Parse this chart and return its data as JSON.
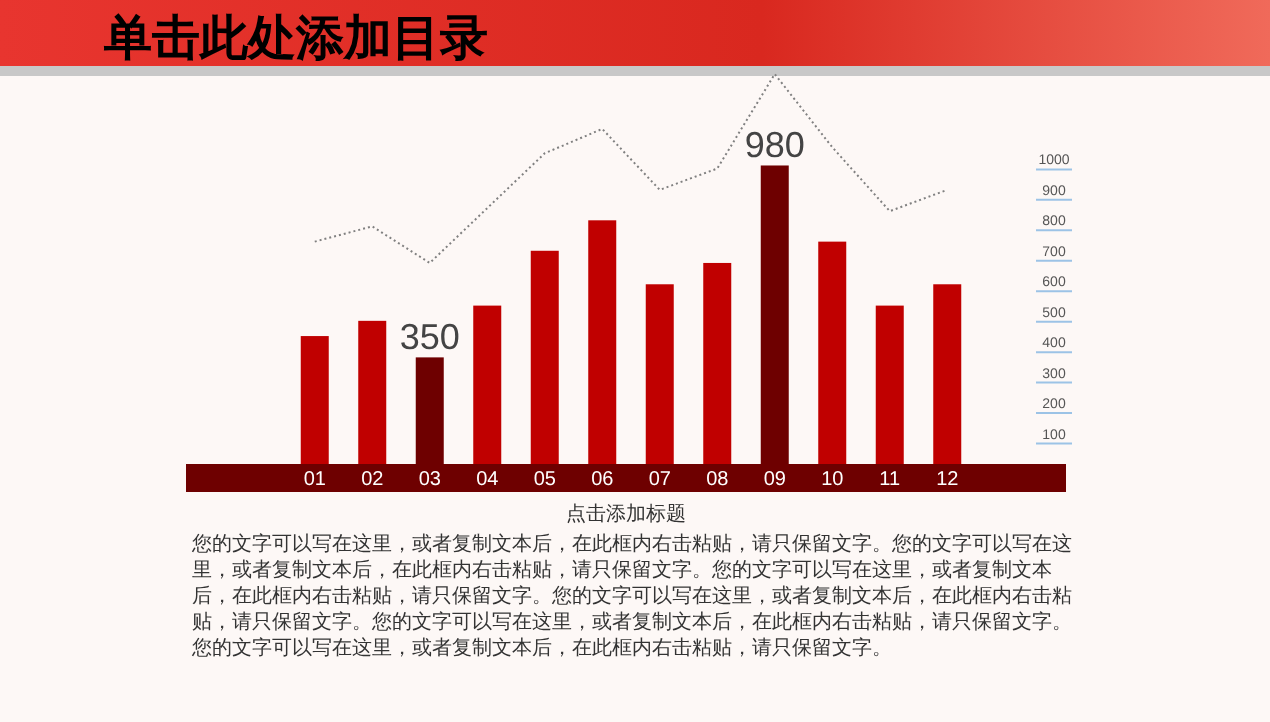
{
  "chart_data": {
    "type": "bar",
    "title": "单击此处添加目录",
    "subtitle": "点击添加标题",
    "annotations": [
      "您的文字可以写在这里，或者复制文本后，在此框内右击粘贴，请只保留文字。您的文字可以写在这里，或者复制文本后，在此框内右击粘贴，请只保留文字。您的文字可以写在这里，或者复制文本后，在此框内右击粘贴，请只保留文字。您的文字可以写在这里，或者复制文本后，在此框内右击粘贴，请只保留文字。您的文字可以写在这里，或者复制文本后，在此框内右击粘贴，请只保留文字。您的文字可以写在这里，或者复制文本后，在此框内右击粘贴，请只保留文字。"
    ],
    "categories": [
      "01",
      "02",
      "03",
      "04",
      "05",
      "06",
      "07",
      "08",
      "09",
      "10",
      "11",
      "12"
    ],
    "series": [
      {
        "values": [
          420,
          470,
          350,
          520,
          700,
          800,
          590,
          660,
          980,
          730,
          520,
          590
        ],
        "colors": [
          "#c00000",
          "#c00000",
          "#6e0000",
          "#c00000",
          "#c00000",
          "#c00000",
          "#c00000",
          "#c00000",
          "#6e0000",
          "#c00000",
          "#c00000",
          "#c00000"
        ],
        "value_labels": [
          null,
          null,
          "350",
          null,
          null,
          null,
          null,
          null,
          "980",
          null,
          null,
          null
        ]
      },
      {
        "type": "line",
        "color": "#808080",
        "line_style": "dotted",
        "values": [
          730,
          780,
          660,
          840,
          1020,
          1100,
          900,
          970,
          1280,
          1040,
          830,
          900
        ]
      }
    ],
    "ylim": [
      0,
      1300
    ],
    "yticks": [
      100,
      200,
      300,
      400,
      500,
      600,
      700,
      800,
      900,
      1000
    ]
  }
}
